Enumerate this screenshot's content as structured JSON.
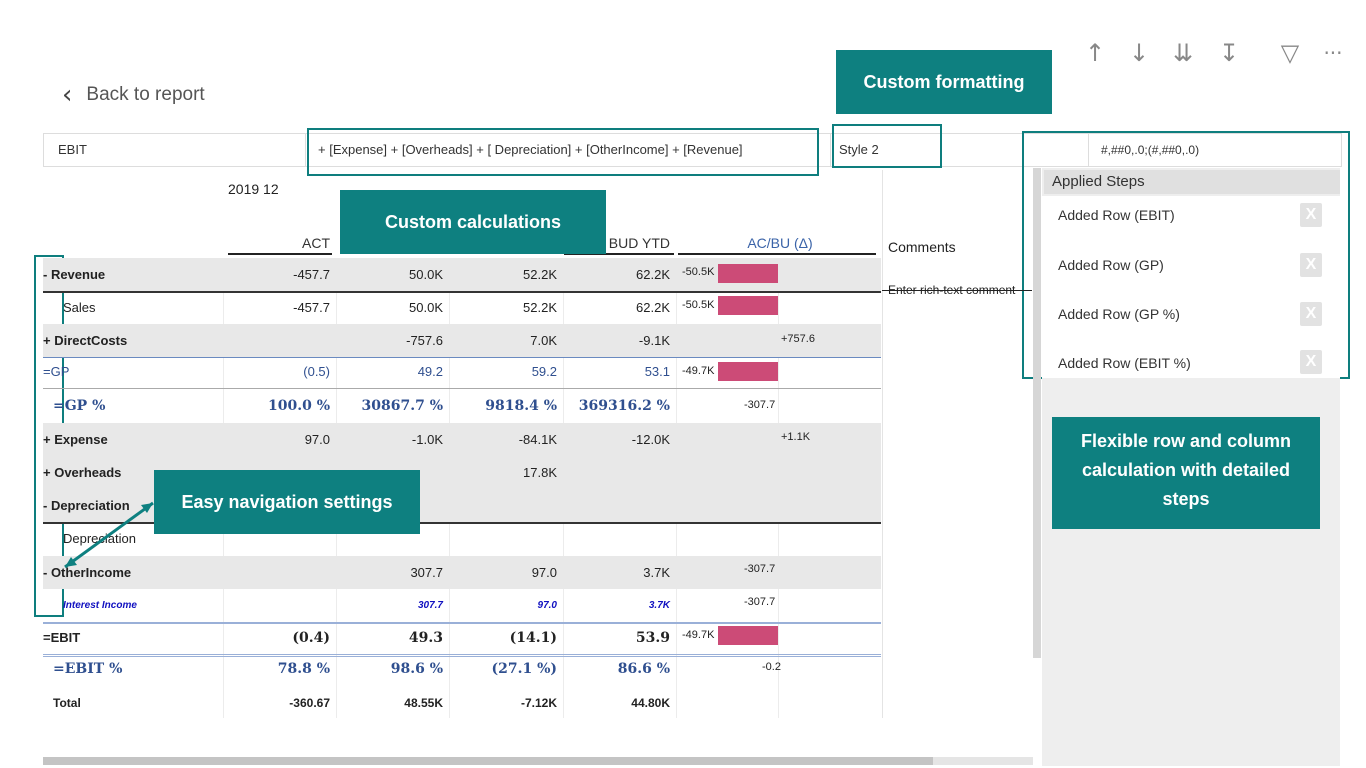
{
  "toolbar": {
    "icons": [
      "arrow-up-icon",
      "arrow-down-icon",
      "double-arrow-down-icon",
      "expand-hierarchy-icon",
      "filter-icon",
      "more-options-icon"
    ],
    "more": "···"
  },
  "back": {
    "label": "Back to report",
    "chevron": "‹"
  },
  "formula": {
    "name": "EBIT",
    "expression": "+ [Expense] + [Overheads] + [ Depreciation] + [OtherIncome] + [Revenue]",
    "style": "Style 2",
    "format": "#,##0,.0;(#,##0,.0)"
  },
  "callouts": {
    "custom_formatting": "Custom formatting",
    "custom_calculations": "Custom calculations",
    "easy_navigation": "Easy navigation settings",
    "flexible": "Flexible row and column calculation with detailed steps"
  },
  "table": {
    "period": "2019 12",
    "columns": [
      "ACT",
      "BUD YTD",
      "AC/BU (Δ)"
    ],
    "comments_header": "Comments",
    "comments_placeholder": "Enter rich-text comment",
    "rows": [
      {
        "label": "- Revenue",
        "v": [
          "-457.7",
          "50.0K",
          "52.2K",
          "62.2K"
        ],
        "delta": "-50.5K"
      },
      {
        "label": "Sales",
        "v": [
          "-457.7",
          "50.0K",
          "52.2K",
          "62.2K"
        ],
        "delta": "-50.5K"
      },
      {
        "label": "+ DirectCosts",
        "v": [
          "",
          "-757.6",
          "7.0K",
          "-9.1K"
        ],
        "delta": "+757.6"
      },
      {
        "label": "=GP",
        "v": [
          "(0.5)",
          "49.2",
          "59.2",
          "53.1"
        ],
        "delta": "-49.7K"
      },
      {
        "label": "=GP %",
        "v": [
          "100.0 %",
          "30867.7 %",
          "9818.4 %",
          "369316.2 %"
        ],
        "delta": "-307.7"
      },
      {
        "label": "+ Expense",
        "v": [
          "97.0",
          "-1.0K",
          "-84.1K",
          "-12.0K"
        ],
        "delta": "+1.1K"
      },
      {
        "label": "+ Overheads",
        "v": [
          "",
          "",
          "17.8K",
          ""
        ],
        "delta": ""
      },
      {
        "label": "- Depreciation",
        "v": [
          "",
          "",
          "",
          ""
        ],
        "delta": ""
      },
      {
        "label": "Depreciation",
        "v": [
          "",
          "",
          "",
          ""
        ],
        "delta": ""
      },
      {
        "label": "- OtherIncome",
        "v": [
          "",
          "307.7",
          "97.0",
          "3.7K"
        ],
        "delta": "-307.7"
      },
      {
        "label": "Interest Income",
        "v": [
          "",
          "307.7",
          "97.0",
          "3.7K"
        ],
        "delta": "-307.7"
      },
      {
        "label": "=EBIT",
        "v": [
          "(0.4)",
          "49.3",
          "(14.1)",
          "53.9"
        ],
        "delta": "-49.7K"
      },
      {
        "label": "=EBIT %",
        "v": [
          "78.8 %",
          "98.6 %",
          "(27.1 %)",
          "86.6 %"
        ],
        "delta": "-0.2"
      },
      {
        "label": "Total",
        "v": [
          "-360.67",
          "48.55K",
          "-7.12K",
          "44.80K"
        ],
        "delta": ""
      }
    ]
  },
  "steps": {
    "title": "Applied Steps",
    "items": [
      "Added Row (EBIT)",
      "Added Row (GP)",
      "Added Row (GP %)",
      "Added Row (EBIT %)"
    ],
    "remove": "X"
  },
  "colors": {
    "accent": "#0e8080",
    "bar": "#cc4b77",
    "link": "#2f4f8f"
  }
}
